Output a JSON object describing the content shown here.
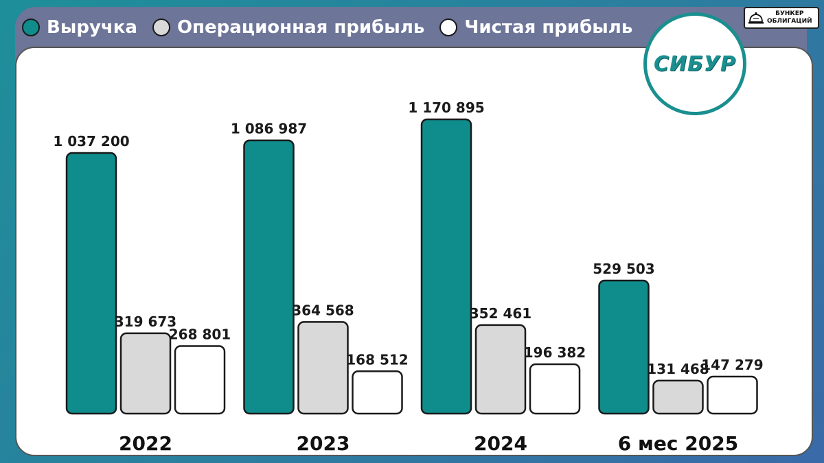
{
  "legend": [
    {
      "label": "Выручка",
      "color": "#0f8c8c"
    },
    {
      "label": "Операционная прибыль",
      "color": "#d9d9d9"
    },
    {
      "label": "Чистая прибыль",
      "color": "#ffffff"
    }
  ],
  "brand": {
    "text": "БУНКЕР\nОБЛИГАЦИЙ",
    "icon": "bell-icon"
  },
  "logo": {
    "text": "СИБУР"
  },
  "chart_data": {
    "type": "bar",
    "categories": [
      "2022",
      "2023",
      "2024",
      "6 мес 2025"
    ],
    "series": [
      {
        "name": "Выручка",
        "color": "#0f8c8c",
        "values": [
          1037200,
          1086987,
          1170895,
          529503
        ],
        "labels": [
          "1 037 200",
          "1 086 987",
          "1 170 895",
          "529 503"
        ]
      },
      {
        "name": "Операционная прибыль",
        "color": "#d9d9d9",
        "values": [
          319673,
          364568,
          352461,
          131468
        ],
        "labels": [
          "319 673",
          "364 568",
          "352 461",
          "131 468"
        ]
      },
      {
        "name": "Чистая прибыль",
        "color": "#ffffff",
        "values": [
          268801,
          168512,
          196382,
          147279
        ],
        "labels": [
          "268 801",
          "168 512",
          "196 382",
          "147 279"
        ]
      }
    ],
    "ylim": [
      0,
      1170895
    ],
    "grid": false,
    "legend_position": "top-left"
  }
}
